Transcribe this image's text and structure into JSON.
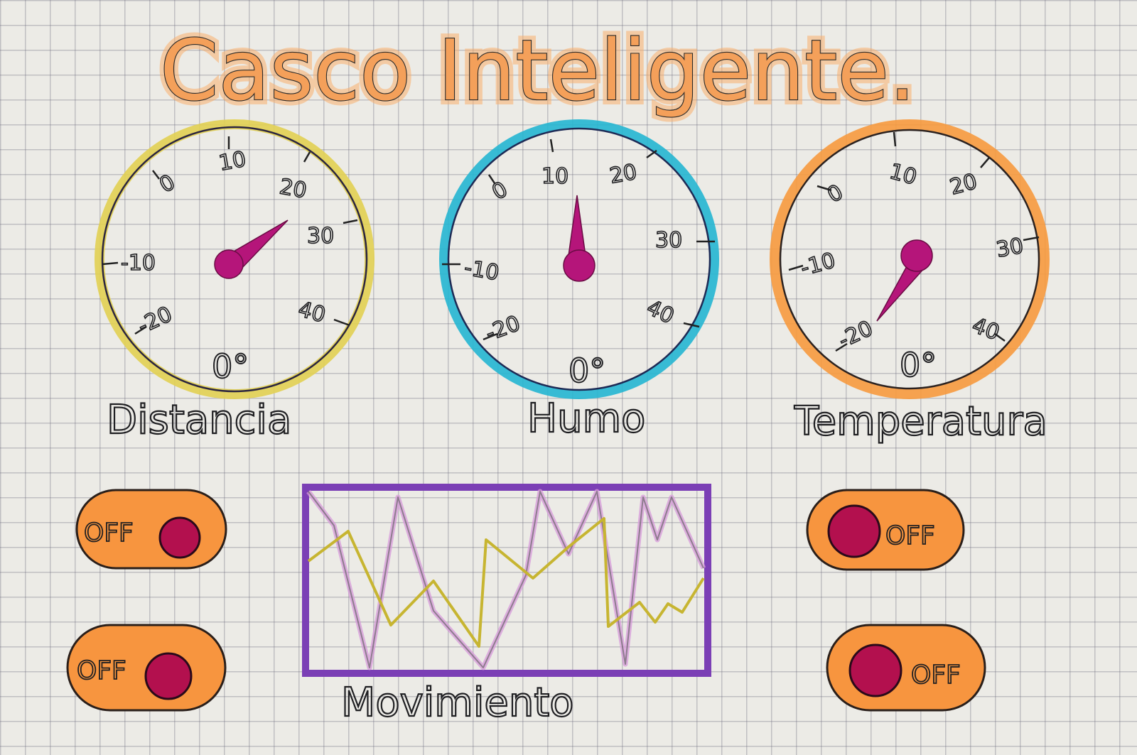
{
  "title": "Casco Inteligente.",
  "colors": {
    "paper": "#ecebe6",
    "title_fill": "#f4a05a",
    "needle": "#b5157a",
    "toggle_body": "#f7953f",
    "toggle_knob": "#b3104e",
    "chart_frame": "#7b3fb5",
    "chart_line_primary": "#c7b531",
    "chart_line_secondary": "#d79ad9"
  },
  "gauges": [
    {
      "id": "distancia",
      "label": "Distancia",
      "ring_color": "#e2d052",
      "ticks": [
        "-20",
        "-10",
        "0",
        "10",
        "20",
        "30",
        "40"
      ],
      "center_mark": "0°",
      "needle_icon": "needle-icon"
    },
    {
      "id": "humo",
      "label": "Humo",
      "ring_color": "#25b6d2",
      "ticks": [
        "-20",
        "-10",
        "0",
        "10",
        "20",
        "30",
        "40"
      ],
      "center_mark": "0°",
      "needle_icon": "needle-icon"
    },
    {
      "id": "temperatura",
      "label": "Temperatura",
      "ring_color": "#f79a3e",
      "ticks": [
        "-20",
        "-10",
        "0",
        "10",
        "20",
        "30",
        "40"
      ],
      "center_mark": "0°",
      "needle_icon": "needle-icon"
    }
  ],
  "toggles": [
    {
      "id": "left-top",
      "label": "OFF",
      "knob_side": "right"
    },
    {
      "id": "left-bottom",
      "label": "OFF",
      "knob_side": "right"
    },
    {
      "id": "right-top",
      "label": "OFF",
      "knob_side": "left"
    },
    {
      "id": "right-bottom",
      "label": "OFF",
      "knob_side": "left"
    }
  ],
  "chart": {
    "label": "Movimiento",
    "type": "line"
  }
}
